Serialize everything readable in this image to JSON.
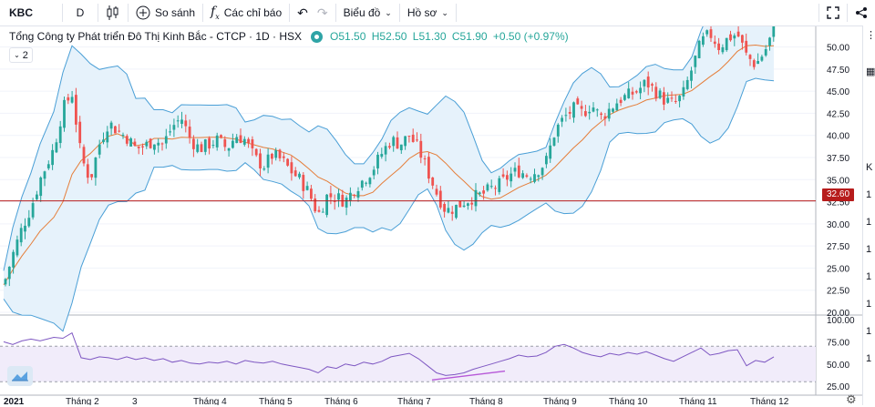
{
  "toolbar": {
    "symbol": "KBC",
    "interval": "D",
    "compare_label": "So sánh",
    "indicators_label": "Các chỉ báo",
    "chart_type_label": "Biểu đồ",
    "profile_label": "Hồ sơ"
  },
  "legend": {
    "title": "Tổng Công ty Phát triển Đô Thị Kinh Bắc - CTCP · 1D · HSX",
    "open": "O51.50",
    "high": "H52.50",
    "low": "L51.30",
    "close": "C51.90",
    "change": "+0.50 (+0.97%)",
    "collapse": "2"
  },
  "price_tag": "32.60",
  "sidebar_letters": [
    "K",
    "1",
    "1",
    "1",
    "1",
    "1",
    "1",
    "1"
  ],
  "colors": {
    "up": "#26a69a",
    "down": "#ef5350",
    "band": "#4a9fd6",
    "band_fill": "#e6f2fb",
    "basis": "#e57e3a",
    "rsi": "#7e57c2",
    "level_line": "#b71c1c"
  },
  "chart_data": {
    "type": "candlestick",
    "price_axis": {
      "ticks": [
        "50.00",
        "47.50",
        "45.00",
        "42.50",
        "40.00",
        "37.50",
        "35.00",
        "32.50",
        "30.00",
        "27.50",
        "25.00",
        "22.50",
        "20.00"
      ],
      "range": [
        20,
        51.5
      ]
    },
    "rsi_axis": {
      "ticks": [
        "100.00",
        "75.00",
        "50.00",
        "25.00"
      ],
      "range": [
        20,
        100
      ],
      "levels": [
        70,
        30
      ]
    },
    "x_labels": [
      "2021",
      "Tháng 2",
      "3",
      "Tháng 4",
      "Tháng 5",
      "Tháng 6",
      "Tháng 7",
      "Tháng 8",
      "Tháng 9",
      "Tháng 10",
      "Tháng 11",
      "Tháng 12"
    ],
    "level_line": 32.6,
    "close_series": [
      [
        0,
        23.1
      ],
      [
        10,
        26.5
      ],
      [
        20,
        29.5
      ],
      [
        30,
        31.8
      ],
      [
        40,
        35.0
      ],
      [
        55,
        38.5
      ],
      [
        65,
        43.0
      ],
      [
        75,
        44.8
      ],
      [
        85,
        37.5
      ],
      [
        95,
        35.0
      ],
      [
        105,
        39.0
      ],
      [
        115,
        41.5
      ],
      [
        125,
        40.5
      ],
      [
        135,
        39.8
      ],
      [
        145,
        38.5
      ],
      [
        155,
        38.8
      ],
      [
        165,
        39.5
      ],
      [
        175,
        39.0
      ],
      [
        185,
        41.0
      ],
      [
        195,
        42.0
      ],
      [
        205,
        39.5
      ],
      [
        215,
        38.5
      ],
      [
        225,
        39.0
      ],
      [
        235,
        39.5
      ],
      [
        245,
        38.5
      ],
      [
        255,
        40.0
      ],
      [
        265,
        39.5
      ],
      [
        275,
        37.5
      ],
      [
        285,
        36.5
      ],
      [
        295,
        37.8
      ],
      [
        305,
        37.2
      ],
      [
        315,
        36.0
      ],
      [
        325,
        35.0
      ],
      [
        335,
        33.5
      ],
      [
        345,
        31.0
      ],
      [
        355,
        33.2
      ],
      [
        365,
        33.0
      ],
      [
        375,
        32.6
      ],
      [
        385,
        34.0
      ],
      [
        395,
        35.0
      ],
      [
        405,
        36.2
      ],
      [
        415,
        38.0
      ],
      [
        425,
        39.5
      ],
      [
        435,
        39.0
      ],
      [
        445,
        40.0
      ],
      [
        455,
        38.5
      ],
      [
        465,
        36.0
      ],
      [
        475,
        33.5
      ],
      [
        485,
        31.5
      ],
      [
        495,
        31.8
      ],
      [
        505,
        32.5
      ],
      [
        515,
        33.0
      ],
      [
        525,
        33.3
      ],
      [
        535,
        34.0
      ],
      [
        545,
        34.5
      ],
      [
        555,
        35.5
      ],
      [
        565,
        36.0
      ],
      [
        575,
        35.5
      ],
      [
        585,
        36.0
      ],
      [
        595,
        37.0
      ],
      [
        605,
        40.5
      ],
      [
        615,
        42.0
      ],
      [
        625,
        43.0
      ],
      [
        635,
        42.5
      ],
      [
        645,
        43.5
      ],
      [
        655,
        42.0
      ],
      [
        665,
        43.0
      ],
      [
        675,
        44.0
      ],
      [
        685,
        44.5
      ],
      [
        695,
        45.0
      ],
      [
        705,
        46.0
      ],
      [
        715,
        45.0
      ],
      [
        725,
        44.0
      ],
      [
        735,
        43.5
      ],
      [
        745,
        44.5
      ],
      [
        755,
        47.5
      ],
      [
        765,
        50.5
      ],
      [
        775,
        51.5
      ],
      [
        785,
        50.0
      ],
      [
        795,
        51.0
      ],
      [
        805,
        51.5
      ],
      [
        815,
        49.0
      ],
      [
        825,
        48.0
      ],
      [
        835,
        49.5
      ],
      [
        845,
        51.9
      ]
    ],
    "rsi_series": [
      [
        0,
        75
      ],
      [
        10,
        72
      ],
      [
        20,
        76
      ],
      [
        30,
        78
      ],
      [
        40,
        76
      ],
      [
        55,
        80
      ],
      [
        65,
        79
      ],
      [
        75,
        85
      ],
      [
        85,
        57
      ],
      [
        95,
        55
      ],
      [
        105,
        58
      ],
      [
        115,
        57
      ],
      [
        125,
        55
      ],
      [
        135,
        58
      ],
      [
        145,
        55
      ],
      [
        155,
        57
      ],
      [
        165,
        54
      ],
      [
        175,
        56
      ],
      [
        185,
        52
      ],
      [
        195,
        54
      ],
      [
        205,
        51
      ],
      [
        215,
        50
      ],
      [
        225,
        52
      ],
      [
        235,
        51
      ],
      [
        245,
        53
      ],
      [
        255,
        50
      ],
      [
        265,
        54
      ],
      [
        275,
        52
      ],
      [
        285,
        51
      ],
      [
        295,
        53
      ],
      [
        305,
        50
      ],
      [
        315,
        48
      ],
      [
        325,
        46
      ],
      [
        335,
        44
      ],
      [
        345,
        40
      ],
      [
        355,
        47
      ],
      [
        365,
        45
      ],
      [
        375,
        50
      ],
      [
        385,
        48
      ],
      [
        395,
        52
      ],
      [
        405,
        50
      ],
      [
        415,
        53
      ],
      [
        425,
        58
      ],
      [
        435,
        60
      ],
      [
        445,
        62
      ],
      [
        455,
        56
      ],
      [
        465,
        48
      ],
      [
        475,
        40
      ],
      [
        485,
        37
      ],
      [
        495,
        38
      ],
      [
        505,
        40
      ],
      [
        515,
        44
      ],
      [
        525,
        47
      ],
      [
        535,
        50
      ],
      [
        545,
        53
      ],
      [
        555,
        56
      ],
      [
        565,
        60
      ],
      [
        575,
        58
      ],
      [
        585,
        59
      ],
      [
        595,
        63
      ],
      [
        605,
        70
      ],
      [
        615,
        72
      ],
      [
        625,
        68
      ],
      [
        635,
        63
      ],
      [
        645,
        60
      ],
      [
        655,
        58
      ],
      [
        665,
        62
      ],
      [
        675,
        60
      ],
      [
        685,
        63
      ],
      [
        695,
        61
      ],
      [
        705,
        64
      ],
      [
        715,
        60
      ],
      [
        725,
        56
      ],
      [
        735,
        53
      ],
      [
        745,
        58
      ],
      [
        755,
        63
      ],
      [
        765,
        68
      ],
      [
        775,
        60
      ],
      [
        785,
        62
      ],
      [
        795,
        65
      ],
      [
        805,
        66
      ],
      [
        815,
        48
      ],
      [
        825,
        54
      ],
      [
        835,
        52
      ],
      [
        845,
        58
      ]
    ]
  }
}
